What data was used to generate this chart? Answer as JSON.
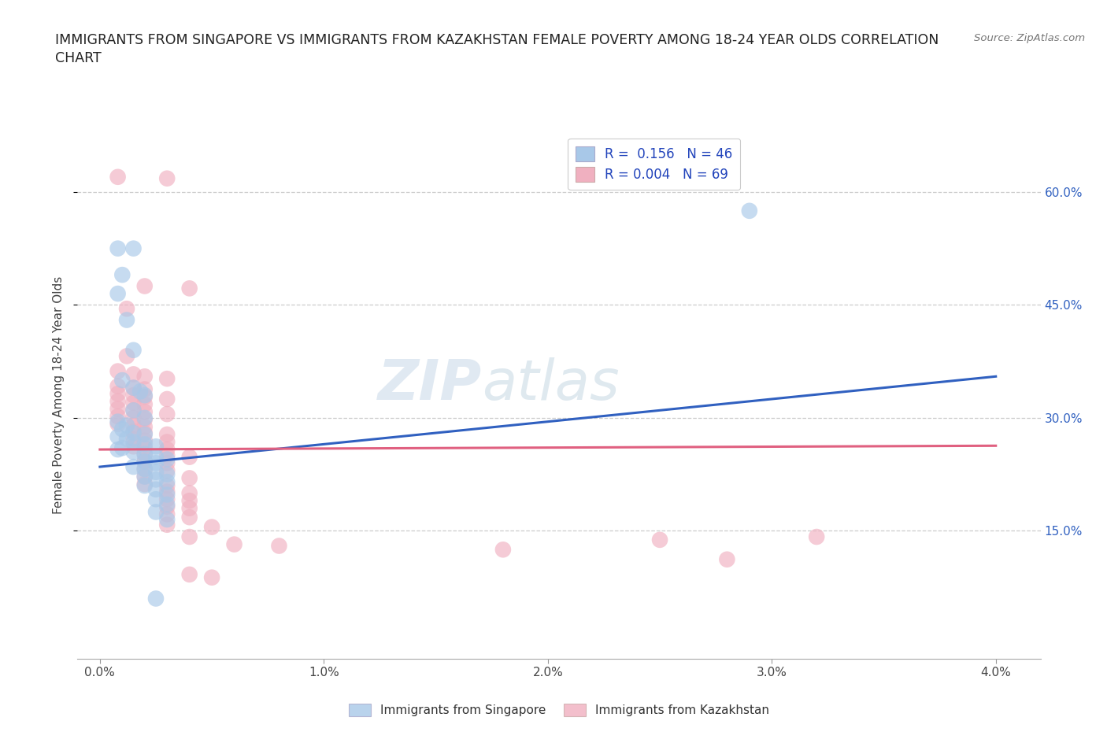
{
  "title": "IMMIGRANTS FROM SINGAPORE VS IMMIGRANTS FROM KAZAKHSTAN FEMALE POVERTY AMONG 18-24 YEAR OLDS CORRELATION\nCHART",
  "source_text": "Source: ZipAtlas.com",
  "ylabel": "Female Poverty Among 18-24 Year Olds",
  "x_tick_labels": [
    "0.0%",
    "1.0%",
    "2.0%",
    "3.0%",
    "4.0%"
  ],
  "x_tick_values": [
    0.0,
    0.01,
    0.02,
    0.03,
    0.04
  ],
  "y_tick_values": [
    0.15,
    0.3,
    0.45,
    0.6
  ],
  "y_tick_labels": [
    "15.0%",
    "30.0%",
    "45.0%",
    "60.0%"
  ],
  "xlim": [
    -0.001,
    0.042
  ],
  "ylim": [
    -0.02,
    0.68
  ],
  "singapore_color": "#a8c8e8",
  "kazakhstan_color": "#f0b0c0",
  "singapore_line_color": "#3060c0",
  "kazakhstan_line_color": "#e06080",
  "singapore_R": 0.156,
  "singapore_N": 46,
  "kazakhstan_R": 0.004,
  "kazakhstan_N": 69,
  "watermark_zip": "ZIP",
  "watermark_atlas": "atlas",
  "legend_label_singapore": "Immigrants from Singapore",
  "legend_label_kazakhstan": "Immigrants from Kazakhstan",
  "sing_line_x0": 0.0,
  "sing_line_y0": 0.235,
  "sing_line_x1": 0.04,
  "sing_line_y1": 0.355,
  "kaz_line_x0": 0.0,
  "kaz_line_y0": 0.258,
  "kaz_line_x1": 0.04,
  "kaz_line_y1": 0.263,
  "singapore_points": [
    [
      0.0008,
      0.525
    ],
    [
      0.0015,
      0.525
    ],
    [
      0.001,
      0.49
    ],
    [
      0.0008,
      0.465
    ],
    [
      0.0012,
      0.43
    ],
    [
      0.0015,
      0.39
    ],
    [
      0.001,
      0.35
    ],
    [
      0.0015,
      0.34
    ],
    [
      0.0018,
      0.335
    ],
    [
      0.002,
      0.33
    ],
    [
      0.0015,
      0.31
    ],
    [
      0.002,
      0.3
    ],
    [
      0.0008,
      0.295
    ],
    [
      0.0012,
      0.29
    ],
    [
      0.001,
      0.285
    ],
    [
      0.0015,
      0.28
    ],
    [
      0.002,
      0.278
    ],
    [
      0.0008,
      0.275
    ],
    [
      0.0012,
      0.272
    ],
    [
      0.0015,
      0.268
    ],
    [
      0.002,
      0.265
    ],
    [
      0.0025,
      0.262
    ],
    [
      0.001,
      0.26
    ],
    [
      0.0008,
      0.258
    ],
    [
      0.0015,
      0.255
    ],
    [
      0.002,
      0.252
    ],
    [
      0.0025,
      0.248
    ],
    [
      0.003,
      0.245
    ],
    [
      0.002,
      0.242
    ],
    [
      0.0025,
      0.24
    ],
    [
      0.0015,
      0.235
    ],
    [
      0.002,
      0.232
    ],
    [
      0.0025,
      0.228
    ],
    [
      0.003,
      0.225
    ],
    [
      0.002,
      0.222
    ],
    [
      0.0025,
      0.218
    ],
    [
      0.003,
      0.215
    ],
    [
      0.002,
      0.21
    ],
    [
      0.0025,
      0.205
    ],
    [
      0.003,
      0.198
    ],
    [
      0.0025,
      0.192
    ],
    [
      0.003,
      0.185
    ],
    [
      0.0025,
      0.175
    ],
    [
      0.003,
      0.165
    ],
    [
      0.0025,
      0.06
    ],
    [
      0.029,
      0.575
    ]
  ],
  "kazakhstan_points": [
    [
      0.0008,
      0.62
    ],
    [
      0.003,
      0.618
    ],
    [
      0.002,
      0.475
    ],
    [
      0.004,
      0.472
    ],
    [
      0.0012,
      0.445
    ],
    [
      0.0012,
      0.382
    ],
    [
      0.0008,
      0.362
    ],
    [
      0.0015,
      0.358
    ],
    [
      0.002,
      0.355
    ],
    [
      0.003,
      0.352
    ],
    [
      0.0008,
      0.342
    ],
    [
      0.0015,
      0.34
    ],
    [
      0.002,
      0.338
    ],
    [
      0.0008,
      0.332
    ],
    [
      0.0015,
      0.33
    ],
    [
      0.002,
      0.328
    ],
    [
      0.003,
      0.325
    ],
    [
      0.0008,
      0.322
    ],
    [
      0.0015,
      0.32
    ],
    [
      0.002,
      0.318
    ],
    [
      0.0008,
      0.312
    ],
    [
      0.0015,
      0.31
    ],
    [
      0.002,
      0.308
    ],
    [
      0.003,
      0.305
    ],
    [
      0.0008,
      0.302
    ],
    [
      0.0015,
      0.3
    ],
    [
      0.002,
      0.298
    ],
    [
      0.0008,
      0.292
    ],
    [
      0.0015,
      0.29
    ],
    [
      0.002,
      0.288
    ],
    [
      0.0015,
      0.282
    ],
    [
      0.002,
      0.28
    ],
    [
      0.003,
      0.278
    ],
    [
      0.0015,
      0.272
    ],
    [
      0.002,
      0.27
    ],
    [
      0.003,
      0.268
    ],
    [
      0.0015,
      0.262
    ],
    [
      0.002,
      0.26
    ],
    [
      0.003,
      0.258
    ],
    [
      0.002,
      0.252
    ],
    [
      0.003,
      0.25
    ],
    [
      0.004,
      0.248
    ],
    [
      0.002,
      0.242
    ],
    [
      0.003,
      0.24
    ],
    [
      0.002,
      0.232
    ],
    [
      0.003,
      0.23
    ],
    [
      0.002,
      0.222
    ],
    [
      0.004,
      0.22
    ],
    [
      0.002,
      0.212
    ],
    [
      0.003,
      0.21
    ],
    [
      0.003,
      0.202
    ],
    [
      0.004,
      0.2
    ],
    [
      0.003,
      0.192
    ],
    [
      0.004,
      0.19
    ],
    [
      0.003,
      0.182
    ],
    [
      0.004,
      0.18
    ],
    [
      0.003,
      0.172
    ],
    [
      0.004,
      0.168
    ],
    [
      0.003,
      0.158
    ],
    [
      0.005,
      0.155
    ],
    [
      0.004,
      0.142
    ],
    [
      0.025,
      0.138
    ],
    [
      0.005,
      0.088
    ],
    [
      0.006,
      0.132
    ],
    [
      0.008,
      0.13
    ],
    [
      0.004,
      0.092
    ],
    [
      0.032,
      0.142
    ],
    [
      0.028,
      0.112
    ],
    [
      0.018,
      0.125
    ]
  ]
}
